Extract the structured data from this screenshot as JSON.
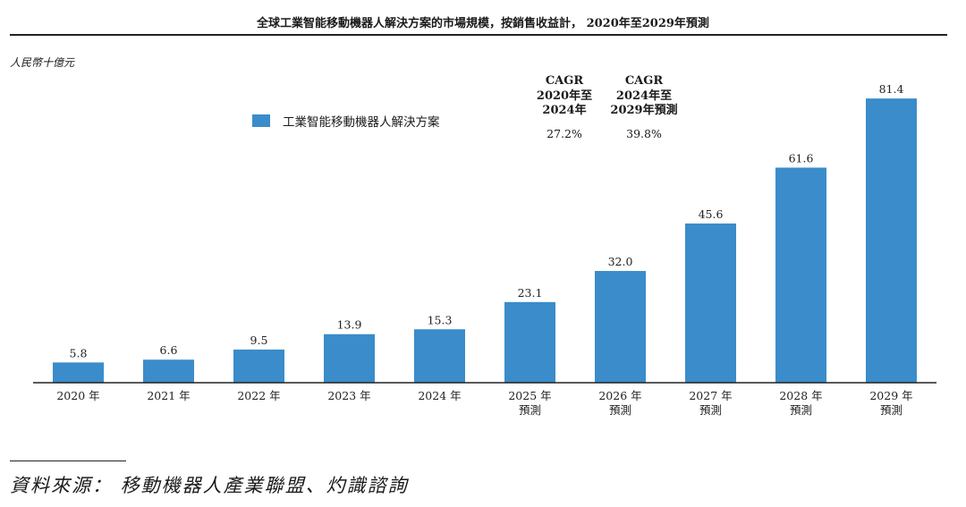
{
  "chart_data": {
    "type": "bar",
    "title": "全球工業智能移動機器人解決方案的市場規模，按銷售收益計， 2020年至2029年預測",
    "unit_label": "人民幣十億元",
    "categories": [
      "2020 年",
      "2021 年",
      "2022 年",
      "2023 年",
      "2024 年",
      "2025 年\n預測",
      "2026 年\n預測",
      "2027 年\n預測",
      "2028 年\n預測",
      "2029 年\n預測"
    ],
    "series": [
      {
        "name": "工業智能移動機器人解決方案",
        "values": [
          5.8,
          6.6,
          9.5,
          13.9,
          15.3,
          23.1,
          32.0,
          45.6,
          61.6,
          81.4
        ]
      }
    ],
    "value_labels": [
      "5.8",
      "6.6",
      "9.5",
      "13.9",
      "15.3",
      "23.1",
      "32.0",
      "45.6",
      "61.6",
      "81.4"
    ],
    "ylim": [
      0,
      84
    ],
    "grid": false,
    "legend": "top-left",
    "bar_color": "#3a8cca",
    "cagr": [
      {
        "label": "CAGR\n2020年至\n2024年",
        "value": "27.2%"
      },
      {
        "label": "CAGR\n2024年至\n2029年預測",
        "value": "39.8%"
      }
    ]
  },
  "source": "資料來源：  移動機器人產業聯盟、灼識諮詢"
}
